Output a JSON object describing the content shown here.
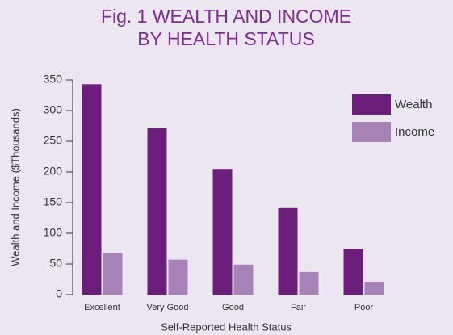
{
  "chart_data": {
    "type": "bar",
    "title": [
      "Fig. 1  WEALTH AND INCOME",
      "BY HEALTH STATUS"
    ],
    "xlabel": "Self-Reported Health Status",
    "ylabel": "Wealth and Income ($Thousands)",
    "categories": [
      "Excellent",
      "Very Good",
      "Good",
      "Fair",
      "Poor"
    ],
    "series": [
      {
        "name": "Wealth",
        "color": "#6b1f7b",
        "values": [
          343,
          271,
          205,
          141,
          75
        ]
      },
      {
        "name": "Income",
        "color": "#a682b7",
        "values": [
          68,
          57,
          49,
          37,
          21
        ]
      }
    ],
    "ylim": [
      0,
      350
    ],
    "yticks": [
      0,
      50,
      100,
      150,
      200,
      250,
      300,
      350
    ],
    "legend": "upper right"
  }
}
